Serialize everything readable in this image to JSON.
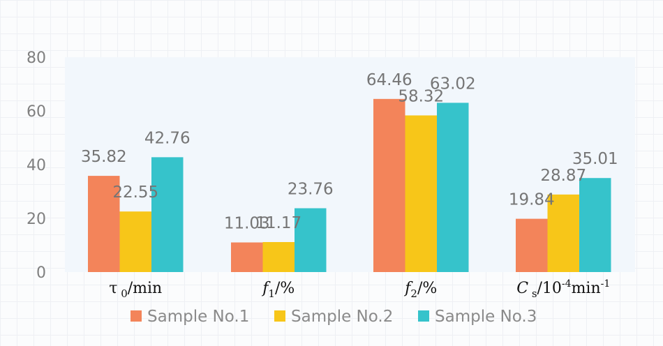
{
  "chart_data": {
    "type": "bar",
    "categories": [
      {
        "id": "tau0",
        "label": [
          {
            "t": "τ"
          },
          {
            "t": " 0",
            "sub": true
          },
          {
            "t": "/min"
          }
        ]
      },
      {
        "id": "f1",
        "label": [
          {
            "t": "f",
            "italic": true
          },
          {
            "t": "1",
            "sub": true
          },
          {
            "t": "/%"
          }
        ]
      },
      {
        "id": "f2",
        "label": [
          {
            "t": "f",
            "italic": true
          },
          {
            "t": "2",
            "sub": true
          },
          {
            "t": "/%"
          }
        ]
      },
      {
        "id": "cs",
        "label": [
          {
            "t": "C",
            "italic": true
          },
          {
            "t": " s",
            "sub": true
          },
          {
            "t": "/10"
          },
          {
            "t": "-4",
            "sup": true
          },
          {
            "t": "min"
          },
          {
            "t": "-1",
            "sup": true
          }
        ]
      }
    ],
    "series": [
      {
        "name": "Sample No.1",
        "color": "#f3845a",
        "values": [
          35.82,
          11.03,
          64.46,
          19.84
        ],
        "labels": [
          "35.82",
          "11.03",
          "64.46",
          "19.84"
        ]
      },
      {
        "name": "Sample No.2",
        "color": "#f7c619",
        "values": [
          22.55,
          11.17,
          58.32,
          28.87
        ],
        "labels": [
          "22.55",
          "11.17",
          "58.32",
          "28.87"
        ]
      },
      {
        "name": "Sample No.3",
        "color": "#36c3cb",
        "values": [
          42.76,
          23.76,
          63.02,
          35.01
        ],
        "labels": [
          "42.76",
          "23.76",
          "63.02",
          "35.01"
        ]
      }
    ],
    "yticks": [
      "0",
      "20",
      "40",
      "60",
      "80"
    ],
    "ylim": [
      0,
      80
    ],
    "grid": false,
    "legend": "bottom",
    "plot_background": "#f2f7fc"
  }
}
